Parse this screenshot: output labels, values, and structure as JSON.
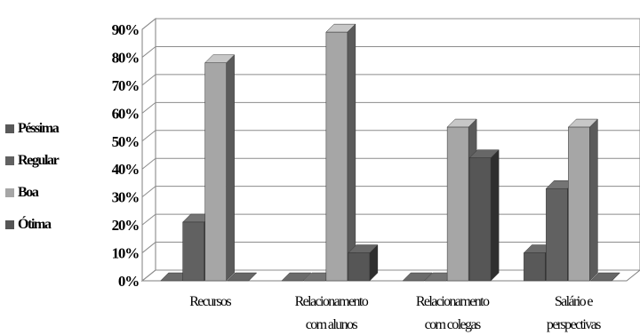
{
  "chart_data": {
    "type": "bar",
    "categories": [
      [
        "Recursos"
      ],
      [
        "Relacionamento",
        "com alunos"
      ],
      [
        "Relacionamento",
        "com colegas"
      ],
      [
        "Salário e",
        "perspectivas"
      ]
    ],
    "series": [
      {
        "name": "Péssima",
        "values": [
          0,
          0,
          0,
          10
        ],
        "color": "#595959"
      },
      {
        "name": "Regular",
        "values": [
          21,
          0,
          0,
          33
        ],
        "color": "#616161"
      },
      {
        "name": "Boa",
        "values": [
          78,
          89,
          55,
          55
        ],
        "color": "#a6a6a6"
      },
      {
        "name": "Ótima",
        "values": [
          0,
          10,
          44,
          0
        ],
        "color": "#565656"
      }
    ],
    "yticks": [
      "0%",
      "10%",
      "20%",
      "30%",
      "40%",
      "50%",
      "60%",
      "70%",
      "80%",
      "90%"
    ],
    "ylim": [
      0,
      90
    ],
    "legend_position": "left",
    "grid": true,
    "style": "3d-clustered-column"
  }
}
